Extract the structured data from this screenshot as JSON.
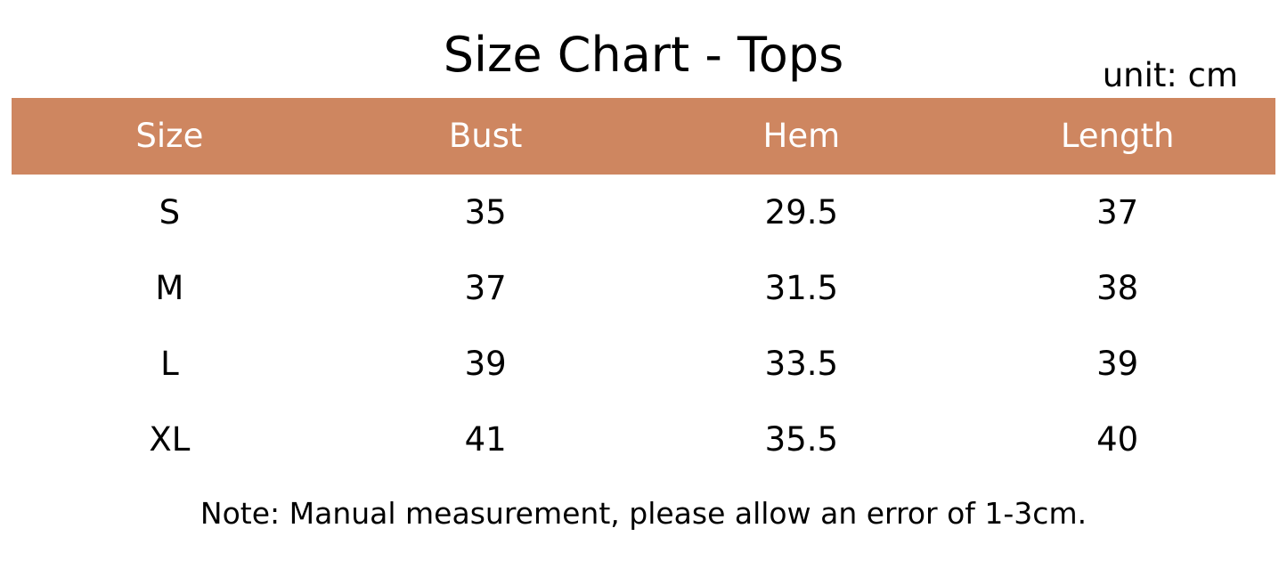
{
  "title": "Size Chart - Tops",
  "unit": "unit: cm",
  "header_color": "#CE8660",
  "columns": [
    "Size",
    "Bust",
    "Hem",
    "Length"
  ],
  "rows": [
    [
      "S",
      "35",
      "29.5",
      "37"
    ],
    [
      "M",
      "37",
      "31.5",
      "38"
    ],
    [
      "L",
      "39",
      "33.5",
      "39"
    ],
    [
      "XL",
      "41",
      "35.5",
      "40"
    ]
  ],
  "note": "Note: Manual measurement, please allow an error of 1-3cm."
}
